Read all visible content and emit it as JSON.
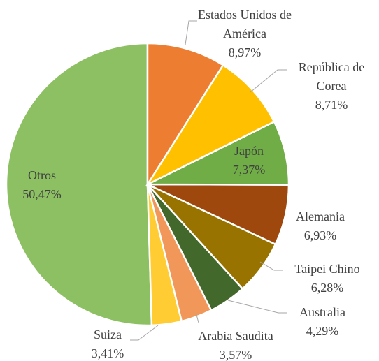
{
  "chart_data": {
    "type": "pie",
    "categories": [
      "Estados Unidos de América",
      "República de Corea",
      "Japón",
      "Alemania",
      "Taipei Chino",
      "Australia",
      "Arabia Saudita",
      "Suiza",
      "Otros"
    ],
    "values": [
      8.97,
      8.71,
      7.37,
      6.93,
      6.28,
      4.29,
      3.57,
      3.41,
      50.47
    ],
    "value_labels": [
      "8,97%",
      "8,71%",
      "7,37%",
      "6,93%",
      "6,28%",
      "4,29%",
      "3,57%",
      "3,41%",
      "50,47%"
    ],
    "colors": [
      "#ed7d31",
      "#ffc000",
      "#70ad47",
      "#9e480e",
      "#997300",
      "#43682b",
      "#f1975a",
      "#ffcd33",
      "#8dc063"
    ]
  }
}
